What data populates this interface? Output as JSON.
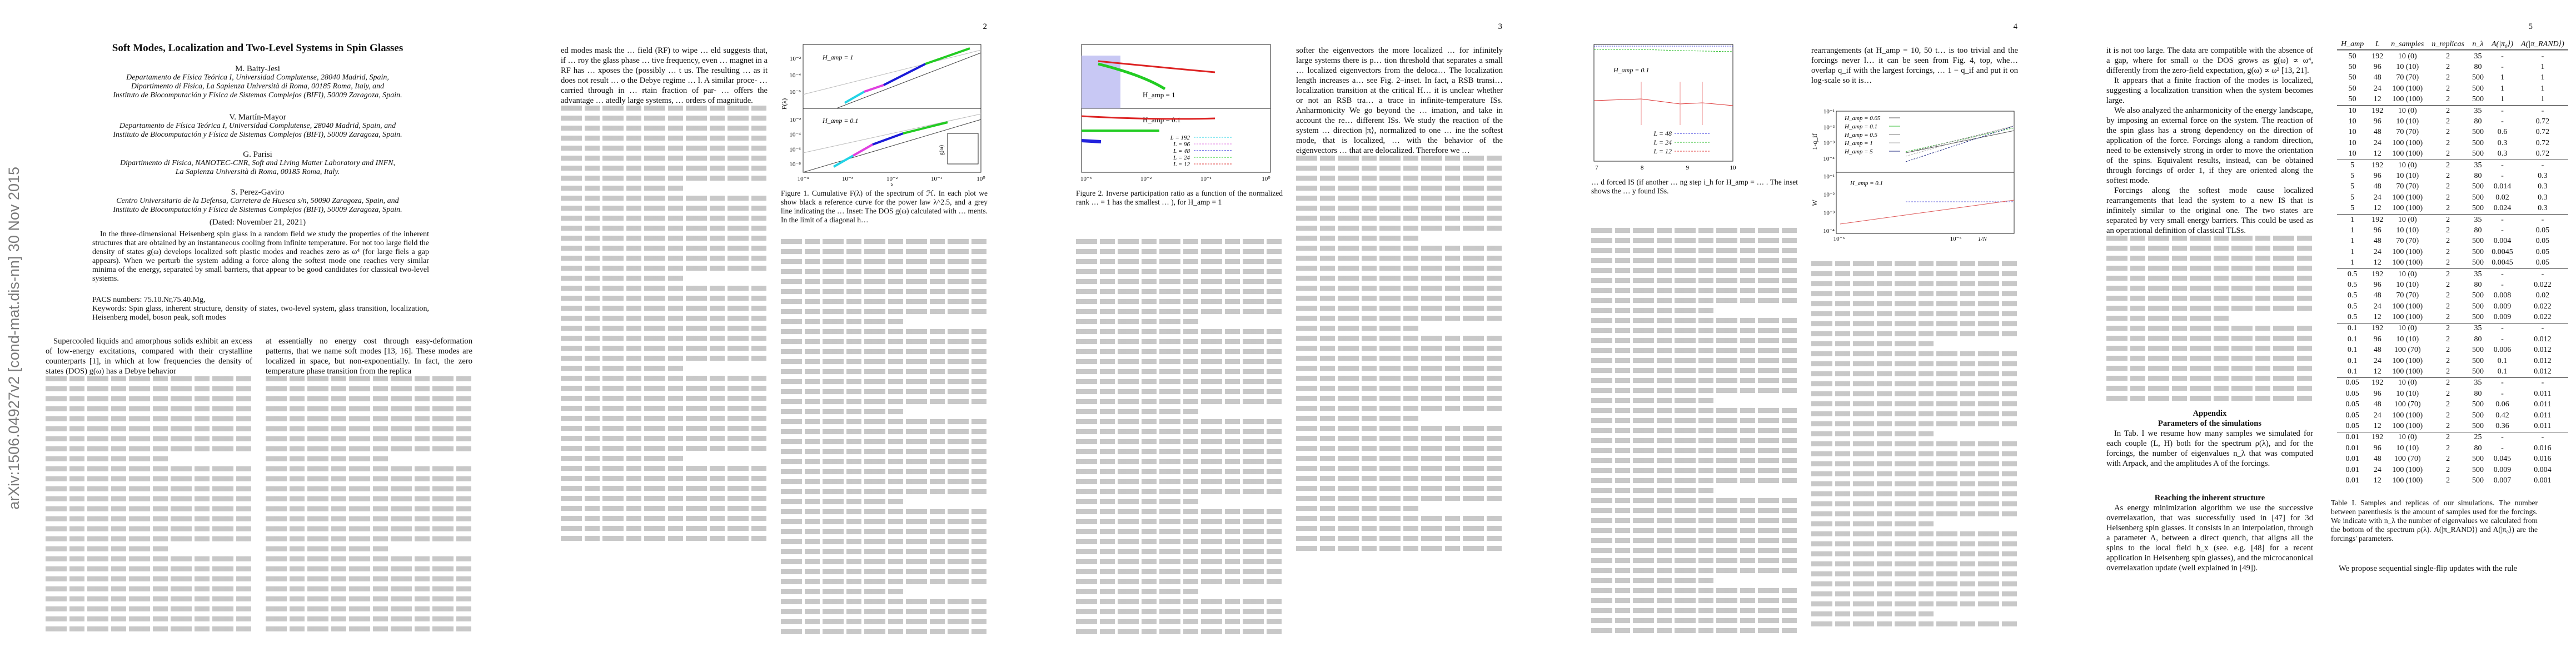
{
  "arxiv_stamp": "arXiv:1506.04927v2  [cond-mat.dis-nn]  30 Nov 2015",
  "page_numbers": [
    "2",
    "3",
    "4",
    "5"
  ],
  "title": "Soft Modes, Localization and Two-Level Systems in Spin Glasses",
  "authors": [
    {
      "name": "M. Baity-Jesi",
      "affiliation": [
        "Departamento de Física Teórica I, Universidad Complutense, 28040 Madrid, Spain,",
        "Dipartimento di Fisica, La Sapienza Università di Roma, 00185 Roma, Italy, and",
        "Instituto de Biocomputación y Física de Sistemas Complejos (BIFI), 50009 Zaragoza, Spain."
      ]
    },
    {
      "name": "V. Martín-Mayor",
      "affiliation": [
        "Departamento de Física Teórica I, Universidad Complutense, 28040 Madrid, Spain, and",
        "Instituto de Biocomputación y Física de Sistemas Complejos (BIFI), 50009 Zaragoza, Spain."
      ]
    },
    {
      "name": "G. Parisi",
      "affiliation": [
        "Dipartimento di Fisica, NANOTEC-CNR, Soft and Living Matter Laboratory and INFN,",
        "La Sapienza Università di Roma, 00185 Roma, Italy."
      ]
    },
    {
      "name": "S. Perez-Gaviro",
      "affiliation": [
        "Centro Universitario de la Defensa, Carretera de Huesca s/n, 50090 Zaragoza, Spain, and",
        "Instituto de Biocomputación y Física de Sistemas Complejos (BIFI), 50009 Zaragoza, Spain."
      ]
    }
  ],
  "dated": "(Dated: November 21, 2021)",
  "abstract": "In the three-dimensional Heisenberg spin glass in a random field we study the properties of the inherent structures that are obtained by an instantaneous cooling from infinite temperature. For not too large field the density of states g(ω) develops localized soft plastic modes and reaches zero as ω⁴ (for large fiels a gap appears). When we perturb the system adding a force along the softest mode one reaches very similar minima of the energy, separated by small barriers, that appear to be good candidates for classical two-level systems.",
  "pacs": "PACS numbers: 75.10.Nr,75.40.Mg,",
  "keywords": "Keywords: Spin glass, inherent structure, density of states, two-level system, glass transition, localization, Heisenberg model, boson peak, soft modes",
  "page1": {
    "left_intro": "Supercooled liquids and amorphous solids exhibit an excess of low-energy excitations, compared with their crystalline counterparts [1], in which at low frequencies the density of states (DOS) g(ω) has a Debye behavior",
    "right_intro": "at essentially no energy cost through easy-deformation patterns, that we name soft modes [13, 16]. These modes are localized in space, but non-exponentially. In fact, the zero temperature phase transition from the replica"
  },
  "page2": {
    "left_top": "ed modes mask the … field (RF) to wipe … eld suggests that, if … roy the glass phase … tive frequency, even … magnet in a RF has … xposes the (possibly … t us. The resulting … as it does not result … o the Debye regime … l. A similar proce- … carried through in … rtain fraction of par- … offers the advantage … atedly large systems, … orders of magnitude.",
    "fig1": {
      "panels": [
        {
          "label": "H_amp = 1"
        },
        {
          "label": "H_amp = 0.1"
        }
      ],
      "ylabel": "F(λ)",
      "xlabel": "λ",
      "yticks_top": [
        "10⁻²",
        "10⁻⁴",
        "10⁻⁶"
      ],
      "yticks_bottom": [
        "10⁻²",
        "10⁻⁴",
        "10⁻⁶",
        "10⁻⁸"
      ],
      "xticks": [
        "10⁻⁴",
        "10⁻³",
        "10⁻²",
        "10⁻¹",
        "10⁰"
      ],
      "inset_ylabel": "g(ω)",
      "inset_yticks": [
        "0",
        "1",
        "2"
      ],
      "colors": [
        "#22d3e6",
        "#e040e0",
        "#1a1ad8",
        "#22cc22",
        "#dd2222"
      ],
      "caption": "Figure 1. Cumulative F(λ) of the spectrum of ℋ. In each plot we show black a reference curve for the power law λ^2.5, and a grey line indicating the … Inset: The DOS g(ω) calculated with … ments. In the limit of a diagonal h…"
    }
  },
  "page3": {
    "fig2": {
      "panels": [
        {
          "label": "H_amp = 1"
        },
        {
          "label": "H_amp = 0.1"
        }
      ],
      "xticks": [
        "10⁻³",
        "10⁻²",
        "10⁻¹",
        "10⁰"
      ],
      "legend": [
        {
          "label": "L = 192",
          "color": "#22d3e6"
        },
        {
          "label": "L =  96",
          "color": "#e070e0"
        },
        {
          "label": "L =  48",
          "color": "#2222dd"
        },
        {
          "label": "L =  24",
          "color": "#22cc22"
        },
        {
          "label": "L =  12",
          "color": "#dd2222"
        }
      ],
      "caption": "Figure 2. Inverse participation ratio as a function of the normalized rank … = 1 has the smallest … ), for H_amp = 1"
    },
    "right_top": "softer the eigenvectors the more localized … for infinitely large systems there is p… tion threshold that separates a small … localized eigenvectors from the deloca… The localization length increases a… see Fig. 2–inset. In fact, a RSB transi… localization transition at the critical H… it is unclear whether or not an RSB tra… a trace in infinite-temperature ISs. Anharmonicity We go beyond the … imation, and take in account the re… different ISs. We study the reaction of the system … direction |π⟩, normalized to one … ine the softest mode, that is localized, … with the behavior of the eigenvectors … that are delocalized. Therefore we …"
  },
  "page4": {
    "fig3": {
      "label": "H_amp = 0.1",
      "xticks": [
        "7",
        "8",
        "9",
        "10"
      ],
      "legend": [
        {
          "label": "L = 48",
          "color": "#3333dd"
        },
        {
          "label": "L = 24",
          "color": "#22bb22"
        },
        {
          "label": "L = 12",
          "color": "#dd3333"
        }
      ],
      "caption": "… d forced IS (if another … ng step i_h for H_amp = … . The inset shows the … y found ISs."
    },
    "right_top": "rearrangements (at H_amp = 10, 50 t… is too trivial and the forcings never l… it can be seen from Fig. 4, top, whe… overlap q_if with the largest forcings, … 1 − q_if and put it on log-scale so it is…",
    "fig4": {
      "top_ylabel": "1-q_if",
      "bottom_ylabel": "W",
      "xlabel": "1/N",
      "top_yticks": [
        "10⁻¹",
        "10⁻²",
        "10⁻³",
        "10⁻⁴"
      ],
      "bottom_yticks": [
        "10⁻¹",
        "10⁻²",
        "10⁻³",
        "10⁻⁴"
      ],
      "xticks": [
        "10⁻⁶",
        "10⁻⁵"
      ],
      "bottom_label": "H_amp = 0.1",
      "legend": [
        {
          "label": "H_amp = 0.05",
          "color": "#555555"
        },
        {
          "label": "H_amp = 0.1",
          "color": "#33bb33"
        },
        {
          "label": "H_amp = 0.5",
          "color": "#777777"
        },
        {
          "label": "H_amp = 1",
          "color": "#aaaaaa"
        },
        {
          "label": "H_amp = 5",
          "color": "#1a237e"
        }
      ]
    }
  },
  "page5": {
    "left_paragraphs": [
      "it is not too large. The data are compatible with the absence of a gap, where for small ω the DOS grows as g(ω) ∝ ω⁴, differently from the zero-field expectation, g(ω) ∝ ω² [13, 21].",
      "It appears that a finite fraction of the modes is localized, suggesting a localization transition when the system becomes large.",
      "We also analyzed the anharmonicity of the energy landscape, by imposing an external force on the system. The reaction of the spin glass has a strong dependency on the direction of application of the force. Forcings along a random direction, need to be extensively strong in order to move the orientation of the spins. Equivalent results, instead, can be obtained through forcings of order 1, if they are oriented along the softest mode.",
      "Forcings along the softest mode cause localized rearrangements that lead the system to a new IS that is infinitely similar to the original one. The two states are separated by very small energy barriers. This could be used as an operational definition of classical TLSs."
    ],
    "appendix_title": "Appendix",
    "sec1_title": "Parameters of the simulations",
    "sec1_text": "In Tab. I we resume how many samples we simulated for each couple (L, H) both for the spectrum ρ(λ), and for the forcings, the number of eigenvalues n_λ that was computed with Arpack, and the amplitudes A of the forcings.",
    "sec2_title": "Reaching the inherent structure",
    "sec2_text": "As energy minimization algorithm we use the successive overrelaxation, that was successfully used in [47] for 3d Heisenberg spin glasses. It consists in an interpolation, through a parameter Λ, between a direct quench, that aligns all the spins to the local field h_x (see. e.g. [48] for a recent application in Heisenberg spin glasses), and the microcanonical overrelaxation update (well explained in [49]).",
    "table": {
      "headers": [
        "H_amp",
        "L",
        "n_samples",
        "n_replicas",
        "n_λ",
        "A(|π₀⟩)",
        "A(|π_RAND⟩)"
      ],
      "rows": [
        [
          "50",
          "192",
          "10 (0)",
          "2",
          "35",
          "-",
          "-"
        ],
        [
          "50",
          "96",
          "10 (10)",
          "2",
          "80",
          "-",
          "1"
        ],
        [
          "50",
          "48",
          "70 (70)",
          "2",
          "500",
          "1",
          "1"
        ],
        [
          "50",
          "24",
          "100 (100)",
          "2",
          "500",
          "1",
          "1"
        ],
        [
          "50",
          "12",
          "100 (100)",
          "2",
          "500",
          "1",
          "1"
        ],
        [
          "10",
          "192",
          "10 (0)",
          "2",
          "35",
          "-",
          "-"
        ],
        [
          "10",
          "96",
          "10 (10)",
          "2",
          "80",
          "-",
          "0.72"
        ],
        [
          "10",
          "48",
          "70 (70)",
          "2",
          "500",
          "0.6",
          "0.72"
        ],
        [
          "10",
          "24",
          "100 (100)",
          "2",
          "500",
          "0.3",
          "0.72"
        ],
        [
          "10",
          "12",
          "100 (100)",
          "2",
          "500",
          "0.3",
          "0.72"
        ],
        [
          "5",
          "192",
          "10 (0)",
          "2",
          "35",
          "-",
          "-"
        ],
        [
          "5",
          "96",
          "10 (10)",
          "2",
          "80",
          "-",
          "0.3"
        ],
        [
          "5",
          "48",
          "70 (70)",
          "2",
          "500",
          "0.014",
          "0.3"
        ],
        [
          "5",
          "24",
          "100 (100)",
          "2",
          "500",
          "0.02",
          "0.3"
        ],
        [
          "5",
          "12",
          "100 (100)",
          "2",
          "500",
          "0.024",
          "0.3"
        ],
        [
          "1",
          "192",
          "10 (0)",
          "2",
          "35",
          "-",
          "-"
        ],
        [
          "1",
          "96",
          "10 (10)",
          "2",
          "80",
          "-",
          "0.05"
        ],
        [
          "1",
          "48",
          "70 (70)",
          "2",
          "500",
          "0.004",
          "0.05"
        ],
        [
          "1",
          "24",
          "100 (100)",
          "2",
          "500",
          "0.0045",
          "0.05"
        ],
        [
          "1",
          "12",
          "100 (100)",
          "2",
          "500",
          "0.0045",
          "0.05"
        ],
        [
          "0.5",
          "192",
          "10 (0)",
          "2",
          "35",
          "-",
          "-"
        ],
        [
          "0.5",
          "96",
          "10 (10)",
          "2",
          "80",
          "-",
          "0.022"
        ],
        [
          "0.5",
          "48",
          "70 (70)",
          "2",
          "500",
          "0.008",
          "0.02"
        ],
        [
          "0.5",
          "24",
          "100 (100)",
          "2",
          "500",
          "0.009",
          "0.022"
        ],
        [
          "0.5",
          "12",
          "100 (100)",
          "2",
          "500",
          "0.009",
          "0.022"
        ],
        [
          "0.1",
          "192",
          "10 (0)",
          "2",
          "35",
          "-",
          "-"
        ],
        [
          "0.1",
          "96",
          "10 (10)",
          "2",
          "80",
          "-",
          "0.012"
        ],
        [
          "0.1",
          "48",
          "100 (70)",
          "2",
          "500",
          "0.006",
          "0.012"
        ],
        [
          "0.1",
          "24",
          "100 (100)",
          "2",
          "500",
          "0.1",
          "0.012"
        ],
        [
          "0.1",
          "12",
          "100 (100)",
          "2",
          "500",
          "0.1",
          "0.012"
        ],
        [
          "0.05",
          "192",
          "10 (0)",
          "2",
          "35",
          "-",
          "-"
        ],
        [
          "0.05",
          "96",
          "10 (10)",
          "2",
          "80",
          "-",
          "0.011"
        ],
        [
          "0.05",
          "48",
          "100 (70)",
          "2",
          "500",
          "0.06",
          "0.011"
        ],
        [
          "0.05",
          "24",
          "100 (100)",
          "2",
          "500",
          "0.42",
          "0.011"
        ],
        [
          "0.05",
          "12",
          "100 (100)",
          "2",
          "500",
          "0.36",
          "0.011"
        ],
        [
          "0.01",
          "192",
          "10 (0)",
          "2",
          "25",
          "-",
          "-"
        ],
        [
          "0.01",
          "96",
          "10 (10)",
          "2",
          "80",
          "-",
          "0.016"
        ],
        [
          "0.01",
          "48",
          "100 (70)",
          "2",
          "500",
          "0.045",
          "0.016"
        ],
        [
          "0.01",
          "24",
          "100 (100)",
          "2",
          "500",
          "0.009",
          "0.004"
        ],
        [
          "0.01",
          "12",
          "100 (100)",
          "2",
          "500",
          "0.007",
          "0.001"
        ]
      ],
      "caption": "Table I. Samples and replicas of our simulations. The number between parenthesis is the amount of samples used for the forcings. We indicate with n_λ the number of eigenvalues we calculated from the bottom of the spectrum ρ(λ). A(|π_RAND⟩) and A(|π₀⟩) are the forcings' parameters."
    },
    "after_table": "We propose sequential single-flip updates with the rule"
  }
}
